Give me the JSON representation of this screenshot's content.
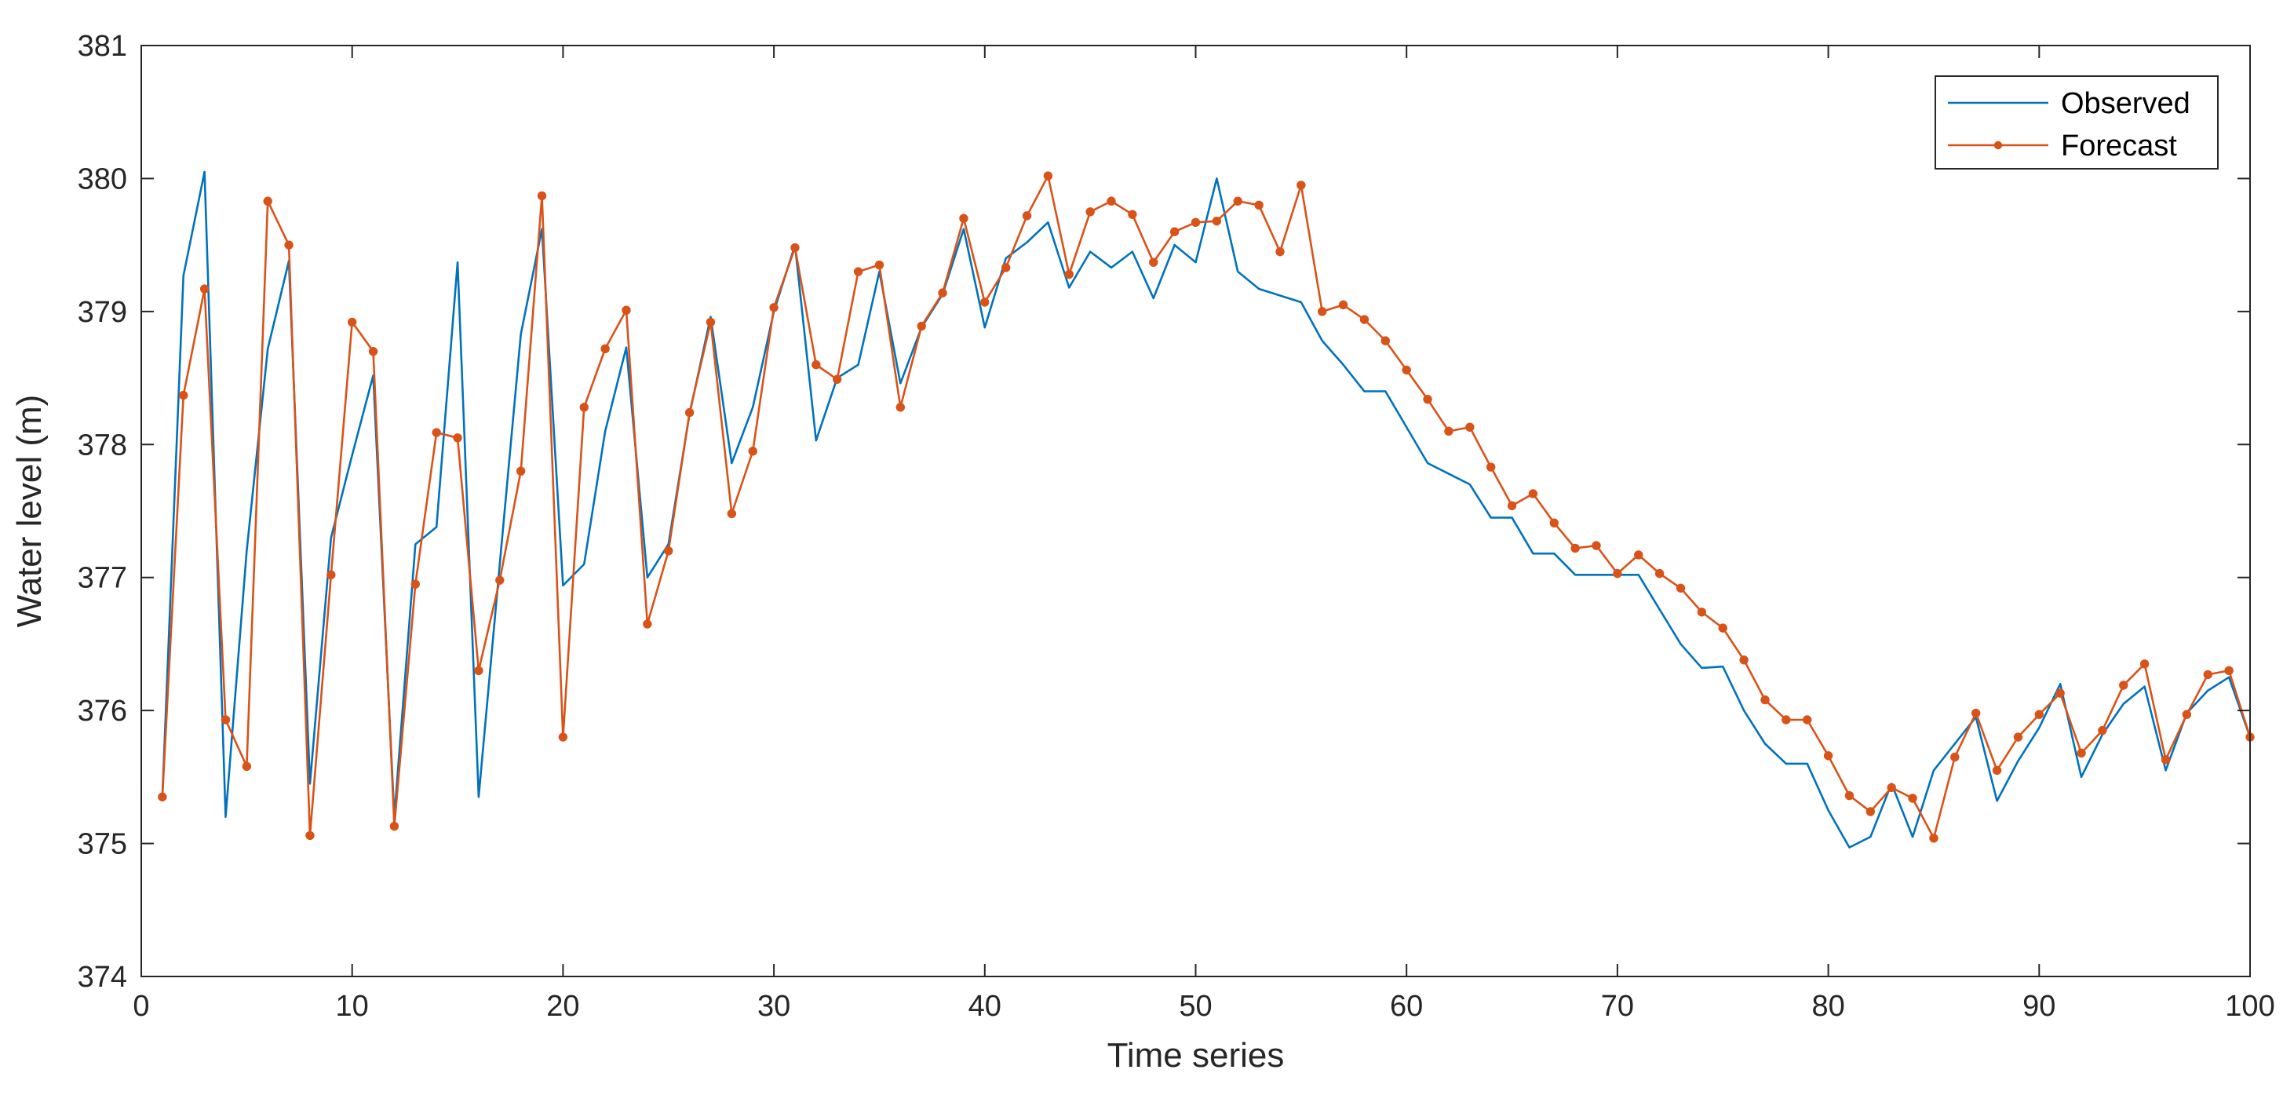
{
  "chart_data": {
    "type": "line",
    "title": "",
    "xlabel": "Time series",
    "ylabel": "Water level (m)",
    "xlim": [
      0,
      100
    ],
    "ylim": [
      374,
      381
    ],
    "xticks": [
      0,
      10,
      20,
      30,
      40,
      50,
      60,
      70,
      80,
      90,
      100
    ],
    "yticks": [
      374,
      375,
      376,
      377,
      378,
      379,
      380,
      381
    ],
    "grid": false,
    "legend_position": "top-right",
    "colors": {
      "observed": "#0072BD",
      "forecast": "#D95319",
      "axis": "#262626"
    },
    "x": [
      1,
      2,
      3,
      4,
      5,
      6,
      7,
      8,
      9,
      10,
      11,
      12,
      13,
      14,
      15,
      16,
      17,
      18,
      19,
      20,
      21,
      22,
      23,
      24,
      25,
      26,
      27,
      28,
      29,
      30,
      31,
      32,
      33,
      34,
      35,
      36,
      37,
      38,
      39,
      40,
      41,
      42,
      43,
      44,
      45,
      46,
      47,
      48,
      49,
      50,
      51,
      52,
      53,
      54,
      55,
      56,
      57,
      58,
      59,
      60,
      61,
      62,
      63,
      64,
      65,
      66,
      67,
      68,
      69,
      70,
      71,
      72,
      73,
      74,
      75,
      76,
      77,
      78,
      79,
      80,
      81,
      82,
      83,
      84,
      85,
      86,
      87,
      88,
      89,
      90,
      91,
      92,
      93,
      94,
      95,
      96,
      97,
      98,
      99,
      100
    ],
    "series": [
      {
        "name": "Observed",
        "marker": "none",
        "values": [
          375.35,
          379.27,
          380.05,
          375.2,
          377.2,
          378.72,
          379.38,
          375.45,
          377.3,
          377.92,
          378.52,
          375.2,
          377.25,
          377.38,
          379.37,
          375.35,
          377.1,
          378.83,
          379.62,
          376.94,
          377.1,
          378.1,
          378.73,
          377.0,
          377.25,
          378.23,
          378.96,
          377.86,
          378.28,
          379.0,
          379.5,
          378.03,
          378.5,
          378.6,
          379.3,
          378.46,
          378.88,
          379.13,
          379.62,
          378.88,
          379.4,
          379.52,
          379.67,
          379.18,
          379.45,
          379.33,
          379.45,
          379.1,
          379.5,
          379.37,
          380.0,
          379.3,
          379.17,
          379.12,
          379.07,
          378.78,
          378.6,
          378.4,
          378.4,
          378.13,
          377.86,
          377.78,
          377.7,
          377.45,
          377.45,
          377.18,
          377.18,
          377.02,
          377.02,
          377.02,
          377.02,
          376.76,
          376.5,
          376.32,
          376.33,
          376.0,
          375.75,
          375.6,
          375.6,
          375.25,
          374.97,
          375.05,
          375.45,
          375.05,
          375.55,
          375.75,
          375.95,
          375.32,
          375.62,
          375.87,
          376.2,
          375.5,
          375.82,
          376.05,
          376.18,
          375.55,
          375.98,
          376.15,
          376.25,
          375.8
        ]
      },
      {
        "name": "Forecast",
        "marker": "dot",
        "values": [
          375.35,
          378.37,
          379.17,
          375.93,
          375.58,
          379.83,
          379.5,
          375.06,
          377.02,
          378.92,
          378.7,
          375.13,
          376.95,
          378.09,
          378.05,
          376.3,
          376.98,
          377.8,
          379.87,
          375.8,
          378.28,
          378.72,
          379.01,
          376.65,
          377.2,
          378.24,
          378.92,
          377.48,
          377.95,
          379.03,
          379.48,
          378.6,
          378.49,
          379.3,
          379.35,
          378.28,
          378.89,
          379.14,
          379.7,
          379.07,
          379.33,
          379.72,
          380.02,
          379.28,
          379.75,
          379.83,
          379.73,
          379.37,
          379.6,
          379.67,
          379.68,
          379.83,
          379.8,
          379.45,
          379.95,
          379.0,
          379.05,
          378.94,
          378.78,
          378.56,
          378.34,
          378.1,
          378.13,
          377.83,
          377.54,
          377.63,
          377.41,
          377.22,
          377.24,
          377.03,
          377.17,
          377.03,
          376.92,
          376.74,
          376.62,
          376.38,
          376.08,
          375.93,
          375.93,
          375.66,
          375.36,
          375.24,
          375.42,
          375.34,
          375.04,
          375.65,
          375.98,
          375.55,
          375.8,
          375.97,
          376.13,
          375.68,
          375.85,
          376.19,
          376.35,
          375.63,
          375.97,
          376.27,
          376.3,
          375.8
        ]
      }
    ]
  }
}
